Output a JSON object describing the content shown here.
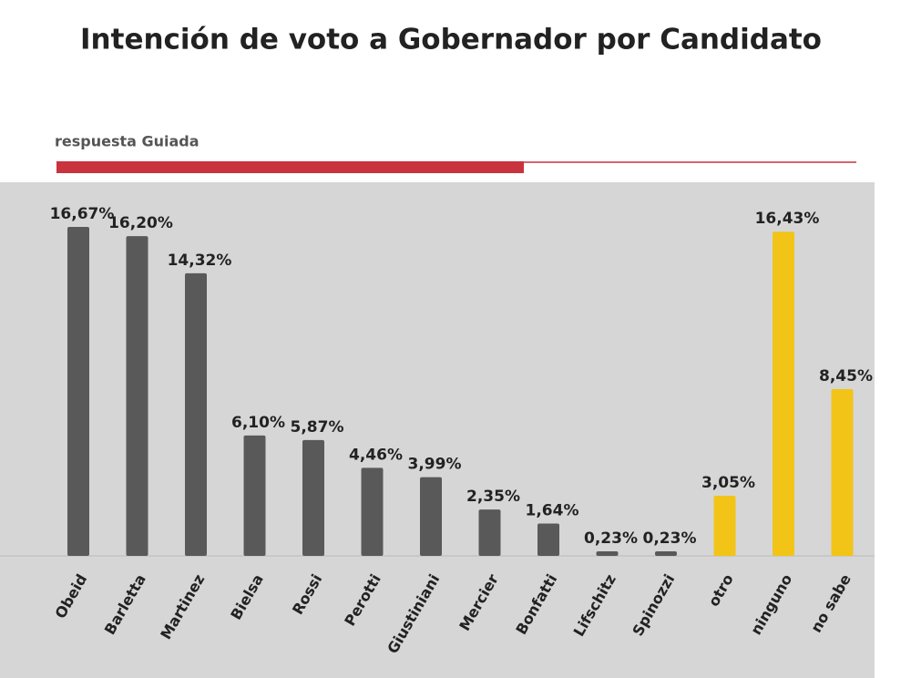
{
  "chart_data": {
    "type": "bar",
    "title": "Intención de voto a Gobernador por Candidato",
    "subtitle": "respuesta Guiada",
    "categories": [
      "Obeid",
      "Barletta",
      "Martinez",
      "Bielsa",
      "Rossi",
      "Perotti",
      "Giustiniani",
      "Mercier",
      "Bonfatti",
      "Lifschitz",
      "Spinozzi",
      "otro",
      "ninguno",
      "no sabe"
    ],
    "values": [
      16.67,
      16.2,
      14.32,
      6.1,
      5.87,
      4.46,
      3.99,
      2.35,
      1.64,
      0.23,
      0.23,
      3.05,
      16.43,
      8.45
    ],
    "value_labels": [
      "16,67%",
      "16,20%",
      "14,32%",
      "6,10%",
      "5,87%",
      "4,46%",
      "3,99%",
      "2,35%",
      "1,64%",
      "0,23%",
      "0,23%",
      "3,05%",
      "16,43%",
      "8,45%"
    ],
    "colors": [
      "#595959",
      "#595959",
      "#595959",
      "#595959",
      "#595959",
      "#595959",
      "#595959",
      "#595959",
      "#595959",
      "#595959",
      "#595959",
      "#f2c418",
      "#f2c418",
      "#f2c418"
    ]
  }
}
